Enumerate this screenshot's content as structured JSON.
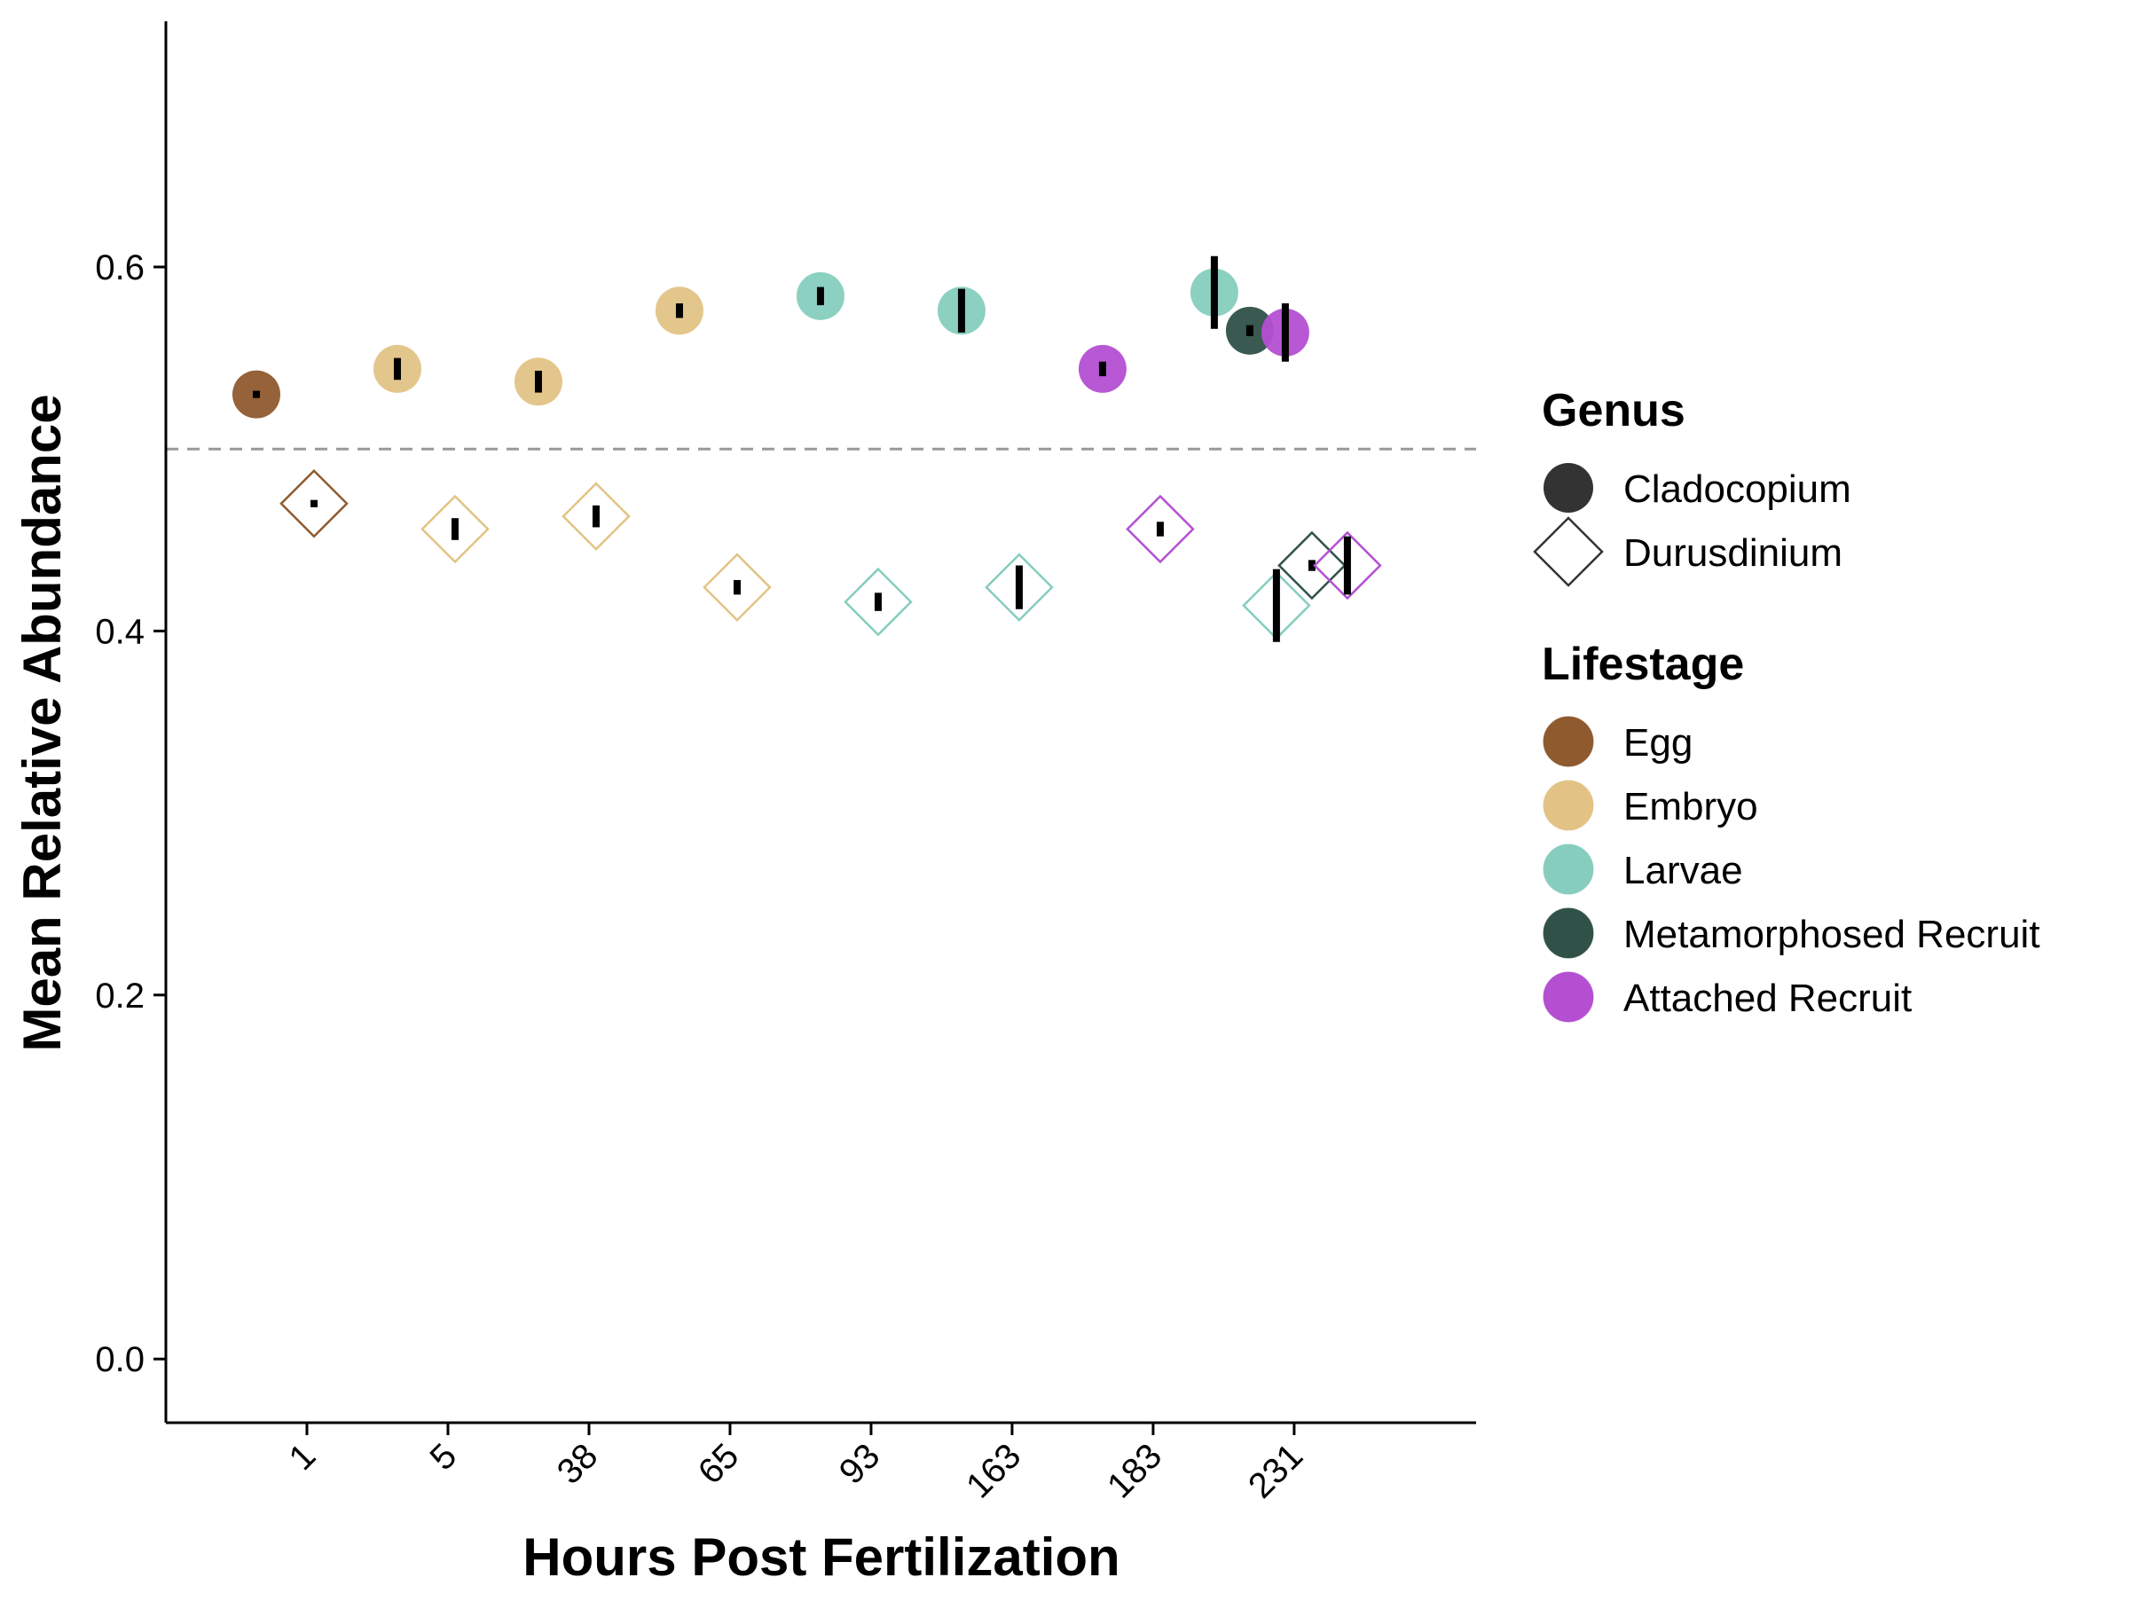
{
  "chart_data": {
    "type": "scatter",
    "title": "",
    "xlabel": "Hours Post Fertilization",
    "ylabel": "Mean Relative Abundance",
    "categories": [
      "1",
      "5",
      "38",
      "65",
      "93",
      "163",
      "183",
      "231"
    ],
    "ylim": [
      -0.035,
      0.735
    ],
    "y_ticks": [
      "0.0",
      "0.2",
      "0.4",
      "0.6"
    ],
    "y_tick_values": [
      0.0,
      0.2,
      0.4,
      0.6
    ],
    "reference_line": 0.5,
    "grid": false,
    "legend_position": "right",
    "legends": [
      {
        "title": "Genus",
        "entries": [
          {
            "label": "Cladocopium",
            "shape": "circle"
          },
          {
            "label": "Durusdinium",
            "shape": "diamond"
          }
        ]
      },
      {
        "title": "Lifestage",
        "entries": [
          {
            "label": "Egg",
            "color": "#8F5A2E"
          },
          {
            "label": "Embryo",
            "color": "#E2C385"
          },
          {
            "label": "Larvae",
            "color": "#86CDBE"
          },
          {
            "label": "Metamorphosed Recruit",
            "color": "#2F5148"
          },
          {
            "label": "Attached Recruit",
            "color": "#B44FD2"
          }
        ]
      }
    ],
    "series": [
      {
        "genus": "Cladocopium",
        "points": [
          {
            "x": "1",
            "stage": "Egg",
            "y": 0.53,
            "err": 0.002
          },
          {
            "x": "5",
            "stage": "Embryo",
            "y": 0.544,
            "err": 0.006
          },
          {
            "x": "38",
            "stage": "Embryo",
            "y": 0.537,
            "err": 0.006
          },
          {
            "x": "65",
            "stage": "Embryo",
            "y": 0.576,
            "err": 0.004
          },
          {
            "x": "93",
            "stage": "Larvae",
            "y": 0.584,
            "err": 0.005
          },
          {
            "x": "163",
            "stage": "Larvae",
            "y": 0.576,
            "err": 0.012
          },
          {
            "x": "183",
            "stage": "Attached Recruit",
            "y": 0.544,
            "err": 0.004
          },
          {
            "x": "231",
            "stage": "Larvae",
            "y": 0.586,
            "err": 0.02
          },
          {
            "x": "231",
            "stage": "Metamorphosed Recruit",
            "y": 0.565,
            "err": 0.003
          },
          {
            "x": "231",
            "stage": "Attached Recruit",
            "y": 0.564,
            "err": 0.016
          }
        ]
      },
      {
        "genus": "Durusdinium",
        "points": [
          {
            "x": "1",
            "stage": "Egg",
            "y": 0.47,
            "err": 0.002
          },
          {
            "x": "5",
            "stage": "Embryo",
            "y": 0.456,
            "err": 0.006
          },
          {
            "x": "38",
            "stage": "Embryo",
            "y": 0.463,
            "err": 0.006
          },
          {
            "x": "65",
            "stage": "Embryo",
            "y": 0.424,
            "err": 0.004
          },
          {
            "x": "93",
            "stage": "Larvae",
            "y": 0.416,
            "err": 0.005
          },
          {
            "x": "163",
            "stage": "Larvae",
            "y": 0.424,
            "err": 0.012
          },
          {
            "x": "183",
            "stage": "Attached Recruit",
            "y": 0.456,
            "err": 0.004
          },
          {
            "x": "231",
            "stage": "Larvae",
            "y": 0.414,
            "err": 0.02
          },
          {
            "x": "231",
            "stage": "Metamorphosed Recruit",
            "y": 0.436,
            "err": 0.003
          },
          {
            "x": "231",
            "stage": "Attached Recruit",
            "y": 0.436,
            "err": 0.016
          }
        ]
      }
    ]
  }
}
